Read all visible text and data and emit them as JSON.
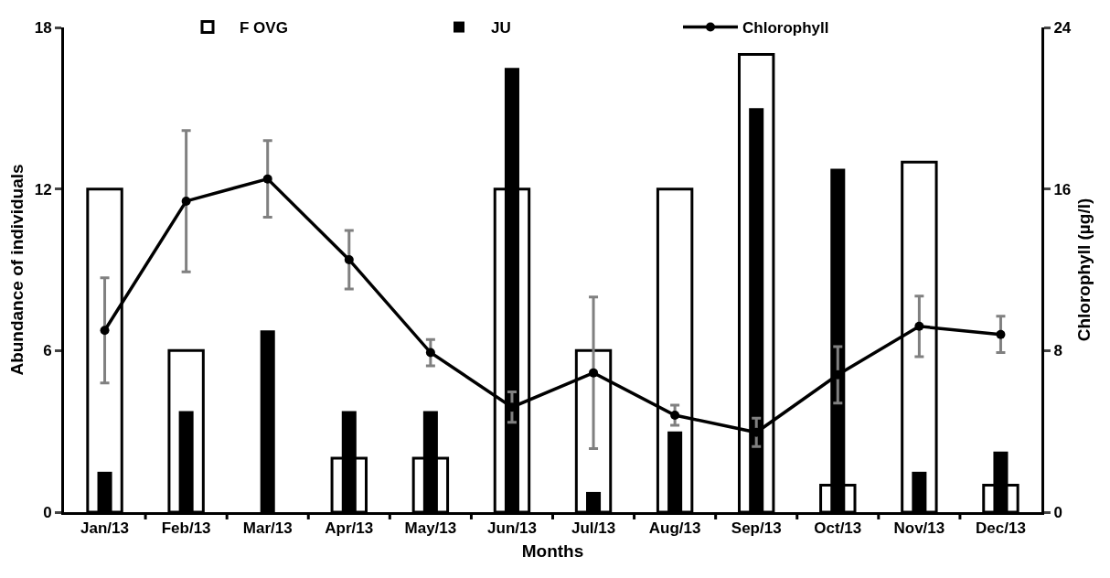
{
  "chart_data": {
    "type": "bar",
    "xlabel": "Months",
    "ylabel": "Abundance of individuals",
    "y2label": "Chlorophyll (µg/l)",
    "categories": [
      "Jan/13",
      "Feb/13",
      "Mar/13",
      "Apr/13",
      "May/13",
      "Jun/13",
      "Jul/13",
      "Aug/13",
      "Sep/13",
      "Oct/13",
      "Nov/13",
      "Dec/13"
    ],
    "series": [
      {
        "name": "F OVG",
        "color": "#ffffff",
        "values": [
          12,
          6,
          0,
          2,
          2,
          12,
          6,
          12,
          17,
          1,
          13,
          1
        ]
      },
      {
        "name": "JU",
        "color": "#000000",
        "values": [
          1.5,
          3.75,
          6.75,
          3.75,
          3.75,
          16.5,
          0.75,
          3,
          15,
          12.75,
          1.5,
          2.25
        ]
      },
      {
        "name": "Chlorophyll",
        "type": "line",
        "axis": "y2",
        "color": "#000000",
        "marker": "circle",
        "values": [
          9,
          15.4,
          16.5,
          12.5,
          7.9,
          5.2,
          6.9,
          4.8,
          3.95,
          6.8,
          9.2,
          8.8
        ],
        "errors": [
          2.6,
          3.5,
          1.9,
          1.45,
          0.65,
          0.75,
          3.75,
          0.5,
          0.7,
          1.4,
          1.5,
          0.9
        ]
      }
    ],
    "ylim": [
      0,
      18
    ],
    "yticks": [
      0,
      6,
      12,
      18
    ],
    "y2lim": [
      0,
      24
    ],
    "y2ticks": [
      0,
      8,
      16,
      24
    ],
    "grid": false,
    "legend": "top"
  }
}
